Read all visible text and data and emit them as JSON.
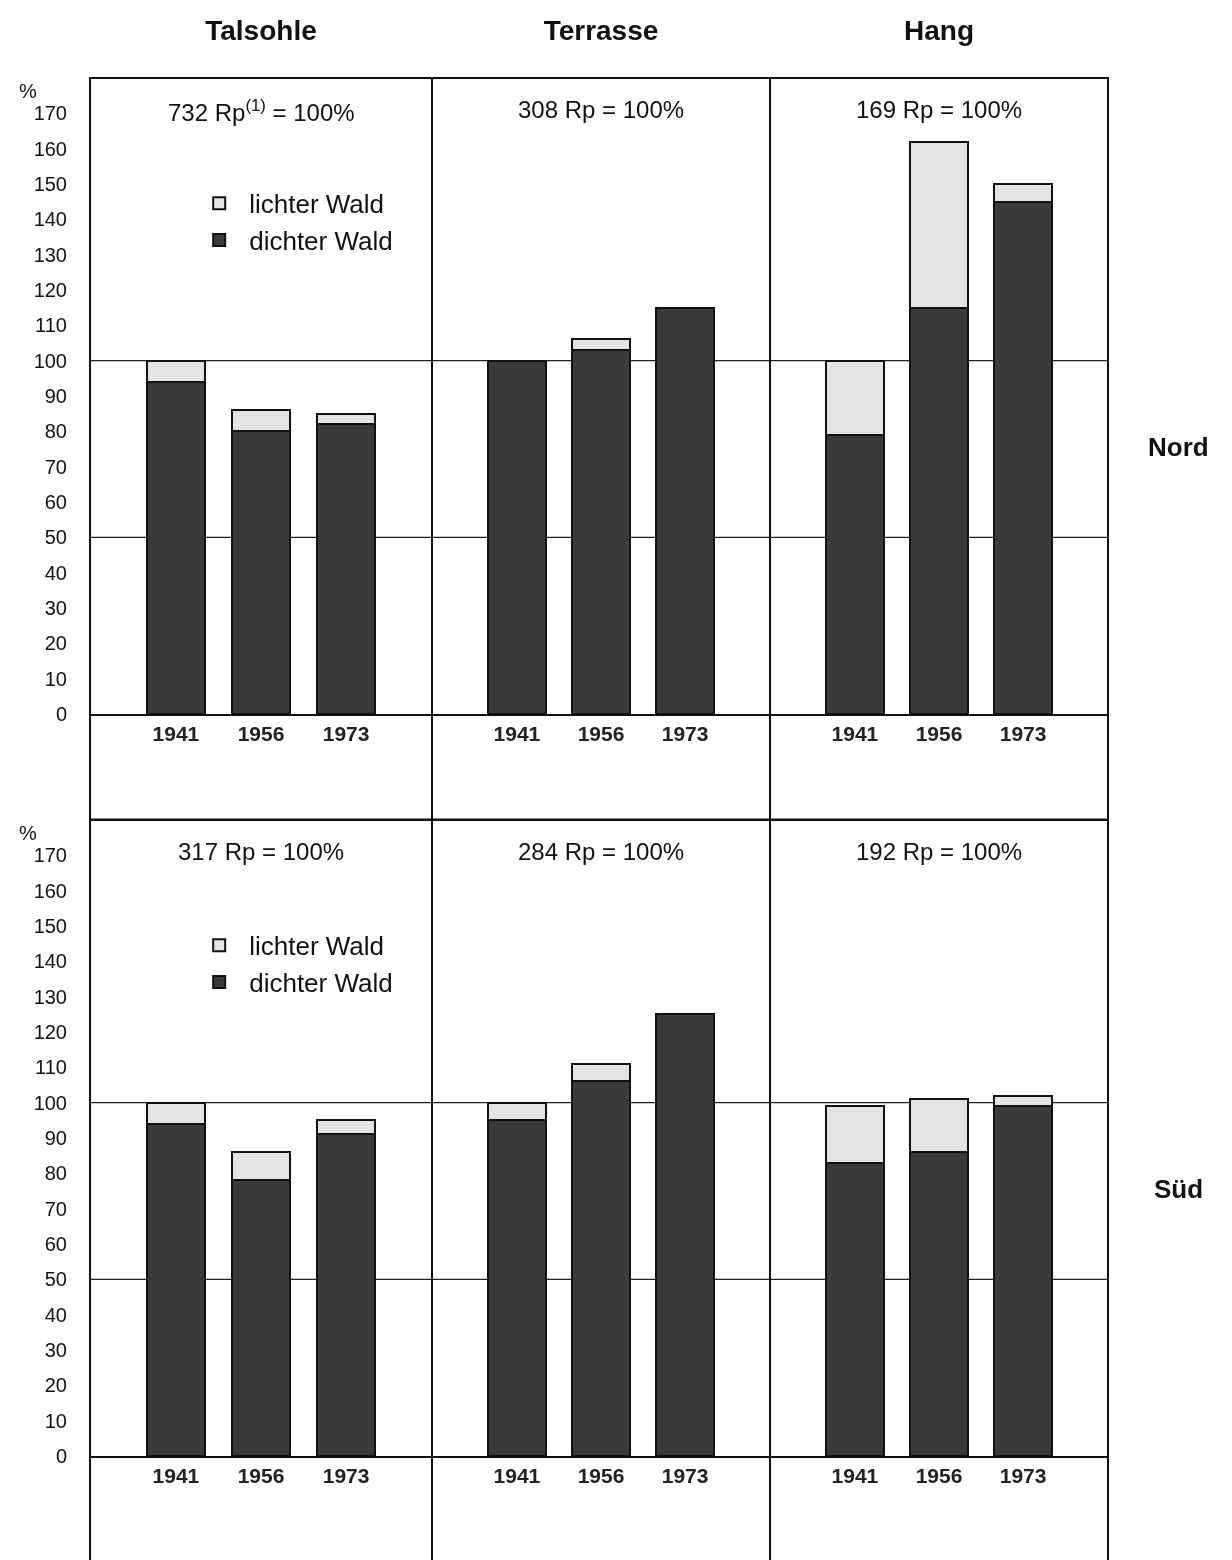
{
  "chart_data": [
    {
      "type": "bar",
      "title": "Talsohle",
      "ylabel": "%",
      "annotations": [
        "732 Rp$^{(1)}$ = 100%"
      ],
      "categories": [
        "1941",
        "1956",
        "1973"
      ],
      "stacked": true,
      "ylim": [
        0,
        180
      ],
      "yticks": [
        0,
        10,
        20,
        30,
        40,
        50,
        60,
        70,
        80,
        90,
        100,
        110,
        120,
        130,
        140,
        150,
        160,
        170
      ],
      "ref_lines": [
        {
          "axis": "y",
          "value": 50
        },
        {
          "axis": "y",
          "value": 100
        }
      ],
      "legend": "top",
      "series": [
        {
          "name": "dichter Wald",
          "color": "#3a3a3a",
          "values": [
            94,
            80,
            82
          ]
        },
        {
          "name": "lichter Wald",
          "color": "#e4e4e4",
          "values": [
            6,
            6,
            3
          ]
        }
      ]
    },
    {
      "type": "bar",
      "title": "Terrasse",
      "annotations": [
        "308 Rp = 100%"
      ],
      "categories": [
        "1941",
        "1956",
        "1973"
      ],
      "stacked": true,
      "ylim": [
        0,
        180
      ],
      "yticks": [
        0,
        10,
        20,
        30,
        40,
        50,
        60,
        70,
        80,
        90,
        100,
        110,
        120,
        130,
        140,
        150,
        160,
        170
      ],
      "tick_labels": "x",
      "ref_lines": [
        {
          "axis": "y",
          "value": 50
        },
        {
          "axis": "y",
          "value": 100
        }
      ],
      "series": [
        {
          "color": "#3a3a3a",
          "values": [
            100,
            103,
            115
          ]
        },
        {
          "color": "#e4e4e4",
          "values": [
            null,
            3,
            null
          ]
        }
      ]
    },
    {
      "type": "bar",
      "title": "Hang",
      "annotations": [
        "169 Rp = 100%",
        "Nord"
      ],
      "categories": [
        "1941",
        "1956",
        "1973"
      ],
      "stacked": true,
      "ylim": [
        0,
        180
      ],
      "yticks": [
        0,
        10,
        20,
        30,
        40,
        50,
        60,
        70,
        80,
        90,
        100,
        110,
        120,
        130,
        140,
        150,
        160,
        170
      ],
      "tick_labels": "x",
      "ref_lines": [
        {
          "axis": "y",
          "value": 50
        },
        {
          "axis": "y",
          "value": 100
        }
      ],
      "series": [
        {
          "color": "#3a3a3a",
          "values": [
            79,
            115,
            145
          ]
        },
        {
          "color": "#e4e4e4",
          "values": [
            21,
            47,
            5
          ]
        }
      ]
    },
    {
      "type": "bar",
      "ylabel": "%",
      "annotations": [
        "317 Rp = 100%"
      ],
      "categories": [
        "1941",
        "1956",
        "1973"
      ],
      "stacked": true,
      "ylim": [
        0,
        180
      ],
      "yticks": [
        0,
        10,
        20,
        30,
        40,
        50,
        60,
        70,
        80,
        90,
        100,
        110,
        120,
        130,
        140,
        150,
        160,
        170
      ],
      "ref_lines": [
        {
          "axis": "y",
          "value": 50
        },
        {
          "axis": "y",
          "value": 100
        }
      ],
      "legend": "top",
      "series": [
        {
          "name": "dichter Wald",
          "color": "#3a3a3a",
          "values": [
            94,
            78,
            91
          ]
        },
        {
          "name": "lichter Wald",
          "color": "#e4e4e4",
          "values": [
            6,
            8,
            4
          ]
        }
      ]
    },
    {
      "type": "bar",
      "annotations": [
        "284 Rp = 100%"
      ],
      "categories": [
        "1941",
        "1956",
        "1973"
      ],
      "stacked": true,
      "ylim": [
        0,
        180
      ],
      "yticks": [
        0,
        10,
        20,
        30,
        40,
        50,
        60,
        70,
        80,
        90,
        100,
        110,
        120,
        130,
        140,
        150,
        160,
        170
      ],
      "tick_labels": "x",
      "ref_lines": [
        {
          "axis": "y",
          "value": 50
        },
        {
          "axis": "y",
          "value": 100
        }
      ],
      "series": [
        {
          "color": "#3a3a3a",
          "values": [
            95,
            106,
            125
          ]
        },
        {
          "color": "#e4e4e4",
          "values": [
            5,
            5,
            null
          ]
        }
      ]
    },
    {
      "type": "bar",
      "annotations": [
        "192 Rp = 100%",
        "Süd"
      ],
      "categories": [
        "1941",
        "1956",
        "1973"
      ],
      "stacked": true,
      "ylim": [
        0,
        180
      ],
      "yticks": [
        0,
        10,
        20,
        30,
        40,
        50,
        60,
        70,
        80,
        90,
        100,
        110,
        120,
        130,
        140,
        150,
        160,
        170
      ],
      "tick_labels": "x",
      "ref_lines": [
        {
          "axis": "y",
          "value": 50
        },
        {
          "axis": "y",
          "value": 100
        }
      ],
      "series": [
        {
          "color": "#3a3a3a",
          "values": [
            83,
            86,
            99
          ]
        },
        {
          "color": "#e4e4e4",
          "values": [
            16,
            15,
            3
          ]
        }
      ]
    }
  ]
}
